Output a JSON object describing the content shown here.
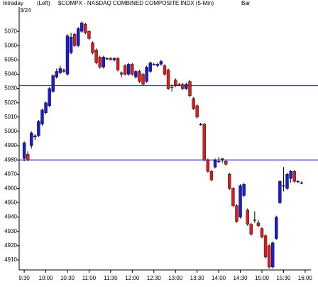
{
  "chart_data": {
    "type": "candlestick",
    "period": "Intraday",
    "axis_side": "(Left)",
    "title": "$COMPX - NASDAQ COMBINED COMPOSITE INDX (5-Min)",
    "style": "Bar",
    "date": "3/24",
    "x": [
      570,
      575,
      580,
      585,
      590,
      595,
      600,
      605,
      610,
      615,
      620,
      625,
      630,
      635,
      640,
      645,
      650,
      655,
      660,
      665,
      670,
      675,
      680,
      685,
      690,
      695,
      700,
      705,
      710,
      715,
      720,
      725,
      730,
      735,
      740,
      745,
      750,
      755,
      760,
      765,
      770,
      775,
      780,
      785,
      790,
      795,
      800,
      805,
      810,
      815,
      820,
      825,
      830,
      835,
      840,
      845,
      850,
      855,
      860,
      865,
      870,
      875,
      880,
      885,
      890,
      895,
      900,
      905,
      910,
      915,
      920,
      925,
      930,
      935,
      940,
      945,
      950,
      955
    ],
    "open": [
      4981,
      4984,
      4990,
      4996,
      4997,
      5005,
      5013,
      5018,
      5028,
      5038,
      5041,
      5043,
      5040,
      5055,
      5068,
      5060,
      5070,
      5075,
      5070,
      5062,
      5057,
      5052,
      5045,
      5051,
      5051,
      5050,
      5051,
      5041,
      5046,
      5040,
      5047,
      5038,
      5042,
      5040,
      5035,
      5042,
      5047,
      5046,
      5047,
      5046,
      5043,
      5031,
      5036,
      5033,
      5033,
      5030,
      5035,
      5023,
      5018,
      5005,
      5005,
      4980,
      4972,
      4975,
      4979,
      4980,
      4979,
      4970,
      4960,
      4948,
      4940,
      4955,
      4945,
      4935,
      4938,
      4936,
      4932,
      4927,
      4920,
      4905,
      4925,
      4950,
      4962,
      4960,
      4967,
      4972,
      4965,
      4964
    ],
    "high": [
      4993,
      4986,
      5000,
      4998,
      5008,
      5016,
      5021,
      5031,
      5040,
      5044,
      5046,
      5044,
      5068,
      5069,
      5069,
      5073,
      5077,
      5076,
      5071,
      5063,
      5058,
      5053,
      5053,
      5052,
      5052,
      5052,
      5052,
      5042,
      5047,
      5048,
      5048,
      5043,
      5043,
      5041,
      5046,
      5049,
      5048,
      5048,
      5050,
      5047,
      5044,
      5033,
      5037,
      5034,
      5034,
      5034,
      5036,
      5024,
      5019,
      5006,
      5006,
      4981,
      4973,
      4981,
      4982,
      4981,
      4980,
      4971,
      4961,
      4949,
      4963,
      4964,
      4946,
      4936,
      4944,
      4938,
      4933,
      4928,
      4921,
      4923,
      4941,
      4966,
      4975,
      4971,
      4973,
      4973,
      4966,
      4965
    ],
    "low": [
      4979,
      4979,
      4988,
      4994,
      4996,
      5004,
      5012,
      5017,
      5027,
      5037,
      5040,
      5041,
      5039,
      5054,
      5059,
      5059,
      5069,
      5068,
      5064,
      5054,
      5047,
      5044,
      5044,
      5050,
      5050,
      5049,
      5042,
      5038,
      5039,
      5039,
      5039,
      5037,
      5034,
      5032,
      5034,
      5041,
      5046,
      5045,
      5046,
      5039,
      5029,
      5028,
      5031,
      5032,
      5029,
      5029,
      5024,
      5015,
      5009,
      5004,
      4979,
      4971,
      4965,
      4974,
      4978,
      4978,
      4976,
      4959,
      4947,
      4936,
      4939,
      4954,
      4934,
      4927,
      4936,
      4933,
      4925,
      4911,
      4904,
      4904,
      4924,
      4949,
      4958,
      4959,
      4964,
      4964,
      4964,
      4963
    ],
    "close": [
      4992,
      4980,
      4999,
      4997,
      5007,
      5015,
      5020,
      5030,
      5039,
      5042,
      5044,
      5042,
      5067,
      5066,
      5060,
      5072,
      5076,
      5069,
      5065,
      5055,
      5048,
      5045,
      5052,
      5051,
      5050,
      5051,
      5043,
      5040,
      5040,
      5047,
      5040,
      5042,
      5035,
      5033,
      5045,
      5048,
      5047,
      5047,
      5049,
      5040,
      5030,
      5031,
      5032,
      5033,
      5030,
      5033,
      5025,
      5016,
      5010,
      5005,
      4980,
      4972,
      4966,
      4980,
      4979,
      4981,
      4977,
      4960,
      4948,
      4937,
      4962,
      4963,
      4935,
      4928,
      4938,
      4934,
      4926,
      4912,
      4905,
      4922,
      4940,
      4965,
      4962,
      4970,
      4972,
      4965,
      4965,
      4964
    ],
    "up_color": "#1c1ccf",
    "down_color": "#d81e1e",
    "hlines": [
      5032,
      4980
    ],
    "hline_color": "#1a1ab8",
    "xlim": [
      563,
      968
    ],
    "ylim": [
      4903,
      5087
    ],
    "xticks": [
      {
        "value": 570,
        "label": "9:30"
      },
      {
        "value": 600,
        "label": "10:00"
      },
      {
        "value": 630,
        "label": "10:30"
      },
      {
        "value": 660,
        "label": "11:00"
      },
      {
        "value": 690,
        "label": "11:30"
      },
      {
        "value": 720,
        "label": "12:00"
      },
      {
        "value": 750,
        "label": "12:30"
      },
      {
        "value": 780,
        "label": "13:00"
      },
      {
        "value": 810,
        "label": "13:30"
      },
      {
        "value": 840,
        "label": "14:00"
      },
      {
        "value": 870,
        "label": "14:30"
      },
      {
        "value": 900,
        "label": "15:00"
      },
      {
        "value": 930,
        "label": "15:30"
      },
      {
        "value": 960,
        "label": "16:00"
      }
    ],
    "yticks": [
      4910,
      4920,
      4930,
      4940,
      4950,
      4960,
      4970,
      4980,
      4990,
      5000,
      5010,
      5020,
      5030,
      5040,
      5050,
      5060,
      5070
    ]
  }
}
